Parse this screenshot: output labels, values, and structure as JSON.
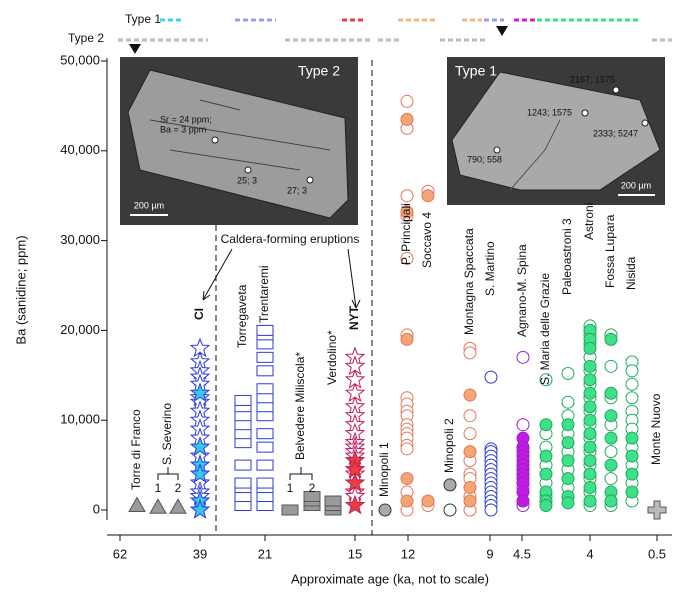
{
  "chart_data": {
    "type": "scatter",
    "y_label": "Ba (sanidine; ppm)",
    "x_label": "Approximate age (ka, not to scale)",
    "ylim": [
      0,
      50000
    ],
    "yticks": [
      0,
      {
        "value": 10000,
        "label": "10,000"
      },
      {
        "value": 20000,
        "label": "20,000"
      },
      {
        "value": 30000,
        "label": "30,000"
      },
      {
        "value": 40000,
        "label": "40,000"
      },
      {
        "value": 50000,
        "label": "50,000"
      }
    ],
    "age_labels": [
      "62",
      "39",
      "21",
      "15",
      "12",
      "9",
      "4.5",
      "4",
      "0.5"
    ],
    "type_rows": [
      "Type 1",
      "Type 2"
    ],
    "group_labels": [
      "S. Severino",
      "Belvedere Miliscola*"
    ],
    "annotation": "Caldera-forming eruptions",
    "insets": [
      {
        "title": "Type 2",
        "notes": [
          "Sr = 24 ppm;",
          "Ba = 3 ppm",
          "25; 3",
          "27; 3"
        ],
        "scale": "200 µm"
      },
      {
        "title": "Type 1",
        "notes": [
          "2167; 1575",
          "1243; 1575",
          "2333; 5247",
          "790; 558"
        ],
        "scale": "200 µm"
      }
    ],
    "series": [
      {
        "name": "Torre di Franco",
        "marker": "triangle",
        "color": "#555555",
        "fill": "#9a9a9a",
        "values": [],
        "filled_values": [
          500
        ]
      },
      {
        "name": "1",
        "marker": "triangle",
        "color": "#555555",
        "fill": "#9a9a9a",
        "values": [],
        "filled_values": [
          300
        ]
      },
      {
        "name": "2",
        "marker": "triangle",
        "color": "#555555",
        "fill": "#9a9a9a",
        "values": [],
        "filled_values": [
          300
        ]
      },
      {
        "name": "CI",
        "marker": "star",
        "color": "#2b3bd6",
        "fill": "#39c6ec",
        "values": [
          18000,
          16500,
          15500,
          14800,
          14000,
          12500,
          12000,
          11000,
          10000,
          9000,
          8000,
          6000,
          3000,
          2000,
          1500
        ],
        "filled_values": [
          13000,
          7000,
          5000,
          4000,
          1000,
          0
        ]
      },
      {
        "name": "Torregaveta",
        "marker": "rect",
        "color": "#2b3bd6",
        "fill": "#aab3f0",
        "values": [
          500,
          1500,
          2500,
          3000,
          5000,
          7500,
          8500,
          9500,
          10500,
          11500,
          12200
        ],
        "filled_values": []
      },
      {
        "name": "Trentaremi",
        "marker": "rect",
        "color": "#2b3bd6",
        "fill": "#aab3f0",
        "values": [
          500,
          1500,
          2500,
          3000,
          5000,
          7000,
          8500,
          10500,
          11500,
          12500,
          13500,
          15500,
          17000,
          18500,
          19500,
          20000
        ],
        "filled_values": []
      },
      {
        "name": "1",
        "marker": "rect",
        "color": "#555555",
        "fill": "#9a9a9a",
        "values": [],
        "filled_values": [
          0
        ]
      },
      {
        "name": "2",
        "marker": "rect",
        "color": "#555555",
        "fill": "#9a9a9a",
        "values": [],
        "filled_values": [
          500,
          1000,
          1500
        ]
      },
      {
        "name": "Verdolino*",
        "marker": "rect",
        "color": "#555555",
        "fill": "#9a9a9a",
        "values": [],
        "filled_values": [
          0,
          500,
          1000
        ]
      },
      {
        "name": "NYT",
        "marker": "star",
        "color": "#c2185b",
        "fill": "#e8413c",
        "values": [
          17000,
          16000,
          14500,
          13000,
          11500,
          10500,
          9500,
          8500,
          7500,
          7000,
          6500,
          6000,
          4000,
          2000,
          1500
        ],
        "filled_values": [
          5500,
          4500,
          3000,
          500
        ]
      },
      {
        "name": "Minopoli 1",
        "marker": "circle",
        "color": "#333333",
        "fill": "#aaaaaa",
        "values": [],
        "filled_values": [
          0
        ]
      },
      {
        "name": "P. Principali",
        "marker": "circle",
        "color": "#e8735a",
        "fill": "#f2a772",
        "values": [
          45500,
          42500,
          35000,
          32800,
          28000,
          19500,
          12500,
          11800,
          11000,
          10500,
          9500,
          9000,
          8500,
          8000,
          7200,
          6800,
          2000,
          0
        ],
        "filled_values": [
          43500,
          33200,
          19000,
          3500,
          1000
        ]
      },
      {
        "name": "Soccavo 4",
        "marker": "circle",
        "color": "#e8735a",
        "fill": "#f2a772",
        "values": [
          35500,
          500
        ],
        "filled_values": [
          35000,
          1000
        ]
      },
      {
        "name": "Minopoli 2",
        "marker": "circle",
        "color": "#333333",
        "fill": "#aaaaaa",
        "values": [
          0
        ],
        "filled_values": [
          2800
        ]
      },
      {
        "name": "Montagna Spaccata",
        "marker": "circle",
        "color": "#e8735a",
        "fill": "#f2a772",
        "values": [
          18000,
          17500,
          10500,
          8500,
          5500,
          4000,
          3500,
          1500,
          0
        ],
        "filled_values": [
          12800,
          6500,
          2500,
          1000
        ]
      },
      {
        "name": "S. Martino",
        "marker": "circle",
        "color": "#2b3bd6",
        "fill": "#2b3bd6",
        "values": [
          14800,
          6800,
          6500,
          6000,
          5500,
          5000,
          4500,
          4000,
          3500,
          3000,
          2500,
          2000,
          1500,
          1000,
          500,
          0
        ],
        "filled_values": []
      },
      {
        "name": "Agnano-M. Spina",
        "marker": "circle",
        "color": "#9b1bd6",
        "fill": "#c21be0",
        "values": [
          17000,
          9500,
          2500,
          500
        ],
        "filled_values": [
          8000,
          7000,
          6500,
          6000,
          5500,
          5000,
          4500,
          4000,
          3500,
          3000,
          2000,
          1000
        ]
      },
      {
        "name": "S. Maria delle Grazie",
        "marker": "circle",
        "color": "#1daa5a",
        "fill": "#3ee08a",
        "values": [
          14500,
          8500,
          7000,
          5000,
          3000,
          1500
        ],
        "filled_values": [
          9500,
          6000,
          4000,
          2000,
          1000,
          500
        ]
      },
      {
        "name": "Paleoastroni 3",
        "marker": "circle",
        "color": "#1daa5a",
        "fill": "#3ee08a",
        "values": [
          15200,
          12000,
          10500,
          8500,
          6500,
          4500,
          2500
        ],
        "filled_values": [
          9500,
          7500,
          5500,
          3500,
          1500,
          800
        ]
      },
      {
        "name": "Astroni",
        "marker": "circle",
        "color": "#1daa5a",
        "fill": "#3ee08a",
        "values": [
          20500,
          19500,
          18500,
          17000,
          15500,
          14000,
          12500,
          11000,
          9500,
          8000,
          6500,
          5000,
          3500,
          2000,
          500
        ],
        "filled_values": [
          20000,
          19000,
          18000,
          16000,
          14500,
          13000,
          11500,
          10000,
          8500,
          7000,
          5500,
          4000,
          2500,
          1000
        ]
      },
      {
        "name": "Fossa Lupara",
        "marker": "circle",
        "color": "#1daa5a",
        "fill": "#3ee08a",
        "values": [
          19500,
          16000,
          12500,
          9500,
          6500,
          3500,
          500
        ],
        "filled_values": [
          19000,
          13000,
          10500,
          8000,
          5000,
          2000,
          1000
        ]
      },
      {
        "name": "Nisida",
        "marker": "circle",
        "color": "#1daa5a",
        "fill": "#3ee08a",
        "values": [
          16500,
          15500,
          14000,
          12500,
          11000,
          10000,
          9000,
          7000,
          5000,
          3000,
          1000
        ],
        "filled_values": [
          8000,
          6000,
          4000,
          2000
        ]
      },
      {
        "name": "Monte Nuovo",
        "marker": "cross",
        "color": "#555555",
        "fill": "#bbbbbb",
        "values": [],
        "filled_values": [
          0
        ]
      }
    ]
  }
}
